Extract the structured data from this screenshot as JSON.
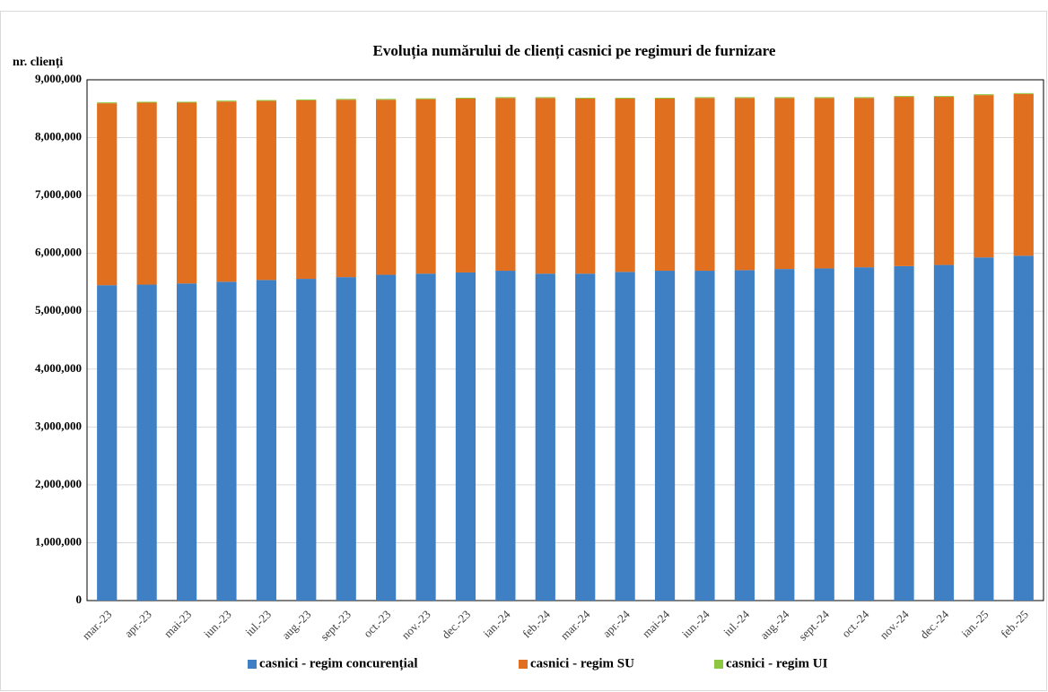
{
  "chart_data": {
    "type": "stacked_bar",
    "title": "Evoluția numărului de clienți casnici pe regimuri de furnizare",
    "y_label": "nr. clienți",
    "categories": [
      "mar.-23",
      "apr.-23",
      "mai-23",
      "iun.-23",
      "iul.-23",
      "aug.-23",
      "sept.-23",
      "oct.-23",
      "nov.-23",
      "dec.-23",
      "ian.-24",
      "feb.-24",
      "mar.-24",
      "apr.-24",
      "mai-24",
      "iun.-24",
      "iul.-24",
      "aug.-24",
      "sept.-24",
      "oct.-24",
      "nov.-24",
      "dec.-24",
      "ian.-25",
      "feb.-25"
    ],
    "series": [
      {
        "name": "casnici - regim concurențial",
        "color": "#3f7fc4",
        "values": [
          5450000,
          5460000,
          5480000,
          5510000,
          5540000,
          5560000,
          5590000,
          5630000,
          5650000,
          5670000,
          5700000,
          5650000,
          5650000,
          5680000,
          5700000,
          5700000,
          5710000,
          5730000,
          5740000,
          5760000,
          5780000,
          5800000,
          5930000,
          5960000
        ]
      },
      {
        "name": "casnici - regim SU",
        "color": "#e07020",
        "values": [
          3145000,
          3145000,
          3125000,
          3115000,
          3095000,
          3085000,
          3065000,
          3025000,
          3015000,
          3005000,
          2985000,
          3035000,
          3025000,
          2995000,
          2975000,
          2985000,
          2975000,
          2955000,
          2945000,
          2925000,
          2925000,
          2905000,
          2805000,
          2795000
        ]
      },
      {
        "name": "casnici - regim UI",
        "color": "#8dc63f",
        "values": [
          15000,
          15000,
          15000,
          15000,
          15000,
          15000,
          15000,
          15000,
          15000,
          15000,
          15000,
          15000,
          15000,
          15000,
          15000,
          15000,
          15000,
          15000,
          15000,
          15000,
          15000,
          15000,
          15000,
          15000
        ]
      }
    ],
    "ylim": [
      0,
      9000000
    ],
    "yticks": [
      0,
      {
        "value": 1000000,
        "label": "1,000,000"
      },
      {
        "value": 2000000,
        "label": "2,000,000"
      },
      {
        "value": 3000000,
        "label": "3,000,000"
      },
      {
        "value": 4000000,
        "label": "4,000,000"
      },
      {
        "value": 5000000,
        "label": "5,000,000"
      },
      {
        "value": 6000000,
        "label": "6,000,000"
      },
      {
        "value": 7000000,
        "label": "7,000,000"
      },
      {
        "value": 8000000,
        "label": "8,000,000"
      },
      {
        "value": 9000000,
        "label": "9,000,000"
      }
    ],
    "grid": true
  }
}
